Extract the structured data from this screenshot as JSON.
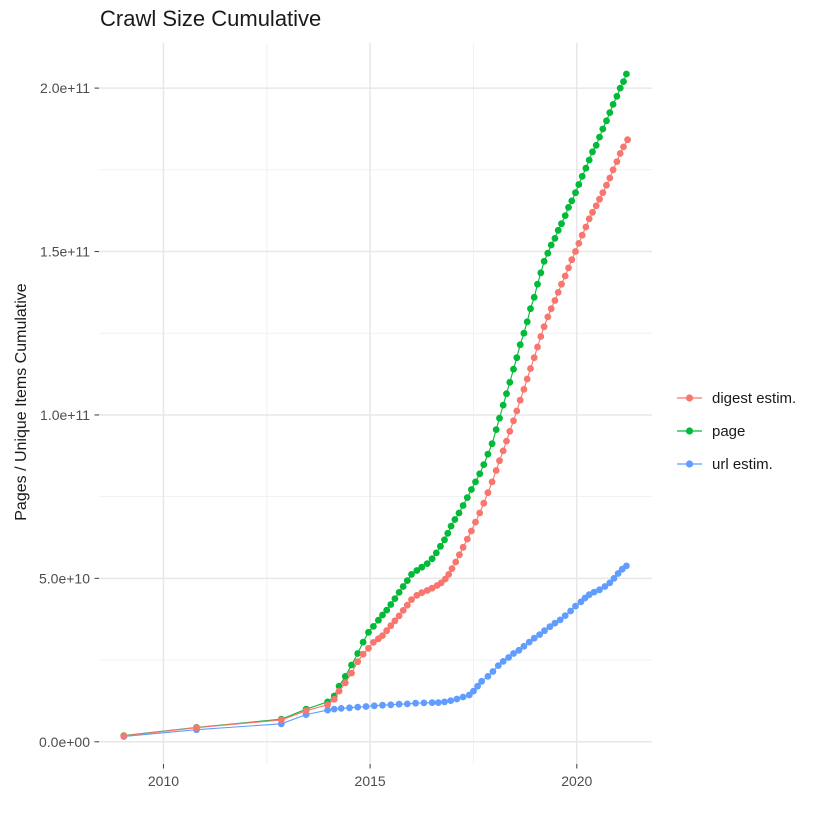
{
  "chart_data": {
    "type": "scatter",
    "title": "Crawl Size Cumulative",
    "xlabel": "",
    "ylabel": "Pages / Unique Items Cumulative",
    "unit": "values in billions of pages / unique items (1e9)",
    "grid": "major+minor, light gray on white",
    "legend_position": "right, vertically centered",
    "xlim": [
      2008.44,
      2021.82
    ],
    "ylim_billions": [
      -6.8,
      213.8
    ],
    "x_ticks": [
      {
        "value": 2010,
        "label": "2010"
      },
      {
        "value": 2015,
        "label": "2015"
      },
      {
        "value": 2020,
        "label": "2020"
      }
    ],
    "x_minor_ticks": [
      2012.5,
      2017.5
    ],
    "y_ticks": [
      {
        "value": 0,
        "label": "0.0e+00"
      },
      {
        "value": 50,
        "label": "5.0e+10"
      },
      {
        "value": 100,
        "label": "1.0e+11"
      },
      {
        "value": 150,
        "label": "1.5e+11"
      },
      {
        "value": 200,
        "label": "2.0e+11"
      }
    ],
    "y_minor_ticks": [
      25,
      75,
      125,
      175
    ],
    "style": {
      "grid_major_color": "#e7e7e7",
      "grid_minor_color": "#f1f1f1",
      "tick_color": "#4d4d4d",
      "tick_label_color": "#4d4d4d",
      "title_color": "#1a1a1a",
      "point_radius": 3.4
    },
    "series": [
      {
        "name": "digest estim.",
        "color": "#F8766D",
        "points": [
          [
            2009.04,
            1.8
          ],
          [
            2010.8,
            4.3
          ],
          [
            2012.85,
            6.7
          ],
          [
            2013.45,
            9.5
          ],
          [
            2013.97,
            11.3
          ],
          [
            2014.13,
            13
          ],
          [
            2014.25,
            15.5
          ],
          [
            2014.4,
            18
          ],
          [
            2014.55,
            21
          ],
          [
            2014.7,
            24.5
          ],
          [
            2014.83,
            26.8
          ],
          [
            2014.96,
            28.6
          ],
          [
            2015.08,
            30.4
          ],
          [
            2015.2,
            31.5
          ],
          [
            2015.3,
            32.5
          ],
          [
            2015.4,
            34
          ],
          [
            2015.5,
            35.5
          ],
          [
            2015.6,
            37
          ],
          [
            2015.7,
            38.5
          ],
          [
            2015.8,
            40.2
          ],
          [
            2015.9,
            41.8
          ],
          [
            2016.0,
            43.5
          ],
          [
            2016.13,
            44.8
          ],
          [
            2016.25,
            45.6
          ],
          [
            2016.38,
            46.3
          ],
          [
            2016.5,
            47
          ],
          [
            2016.62,
            47.8
          ],
          [
            2016.72,
            48.6
          ],
          [
            2016.82,
            49.8
          ],
          [
            2016.9,
            51.2
          ],
          [
            2016.98,
            53
          ],
          [
            2017.07,
            55
          ],
          [
            2017.16,
            57.2
          ],
          [
            2017.25,
            59.5
          ],
          [
            2017.35,
            62
          ],
          [
            2017.45,
            64.5
          ],
          [
            2017.55,
            67.2
          ],
          [
            2017.65,
            70
          ],
          [
            2017.75,
            73
          ],
          [
            2017.85,
            76.2
          ],
          [
            2017.95,
            79.5
          ],
          [
            2018.05,
            83
          ],
          [
            2018.13,
            86
          ],
          [
            2018.22,
            89
          ],
          [
            2018.3,
            92
          ],
          [
            2018.38,
            95
          ],
          [
            2018.47,
            98.2
          ],
          [
            2018.55,
            101.2
          ],
          [
            2018.63,
            104.5
          ],
          [
            2018.72,
            107.8
          ],
          [
            2018.8,
            111
          ],
          [
            2018.88,
            114.2
          ],
          [
            2018.97,
            117.5
          ],
          [
            2019.05,
            120.8
          ],
          [
            2019.13,
            124
          ],
          [
            2019.21,
            127
          ],
          [
            2019.3,
            130
          ],
          [
            2019.38,
            132.5
          ],
          [
            2019.47,
            135
          ],
          [
            2019.55,
            137.5
          ],
          [
            2019.63,
            140
          ],
          [
            2019.72,
            142.5
          ],
          [
            2019.8,
            145
          ],
          [
            2019.88,
            147.5
          ],
          [
            2019.97,
            150
          ],
          [
            2020.05,
            152.5
          ],
          [
            2020.13,
            155
          ],
          [
            2020.22,
            157.5
          ],
          [
            2020.3,
            160
          ],
          [
            2020.38,
            162
          ],
          [
            2020.47,
            164
          ],
          [
            2020.55,
            166
          ],
          [
            2020.63,
            168
          ],
          [
            2020.72,
            170.3
          ],
          [
            2020.8,
            172.5
          ],
          [
            2020.88,
            175
          ],
          [
            2020.97,
            177.5
          ],
          [
            2021.05,
            180
          ],
          [
            2021.13,
            182
          ],
          [
            2021.23,
            184.2
          ]
        ]
      },
      {
        "name": "page",
        "color": "#00BA38",
        "points": [
          [
            2009.04,
            1.9
          ],
          [
            2010.8,
            4.4
          ],
          [
            2012.85,
            6.9
          ],
          [
            2013.45,
            10
          ],
          [
            2013.97,
            12.2
          ],
          [
            2014.13,
            14
          ],
          [
            2014.25,
            17
          ],
          [
            2014.4,
            20
          ],
          [
            2014.55,
            23.5
          ],
          [
            2014.7,
            27
          ],
          [
            2014.83,
            30.5
          ],
          [
            2014.96,
            33.5
          ],
          [
            2015.08,
            35.3
          ],
          [
            2015.2,
            37.2
          ],
          [
            2015.3,
            38.8
          ],
          [
            2015.4,
            40.3
          ],
          [
            2015.5,
            42
          ],
          [
            2015.6,
            43.8
          ],
          [
            2015.7,
            45.7
          ],
          [
            2015.8,
            47.5
          ],
          [
            2015.9,
            49.3
          ],
          [
            2016.0,
            51.2
          ],
          [
            2016.13,
            52.4
          ],
          [
            2016.25,
            53.4
          ],
          [
            2016.38,
            54.5
          ],
          [
            2016.5,
            56
          ],
          [
            2016.6,
            57.8
          ],
          [
            2016.7,
            59.8
          ],
          [
            2016.8,
            61.8
          ],
          [
            2016.88,
            63.8
          ],
          [
            2016.96,
            66
          ],
          [
            2017.05,
            68
          ],
          [
            2017.15,
            70
          ],
          [
            2017.25,
            72.3
          ],
          [
            2017.35,
            74.7
          ],
          [
            2017.45,
            77.2
          ],
          [
            2017.55,
            79.5
          ],
          [
            2017.65,
            82
          ],
          [
            2017.75,
            84.8
          ],
          [
            2017.85,
            88
          ],
          [
            2017.95,
            91.2
          ],
          [
            2018.05,
            95.5
          ],
          [
            2018.13,
            99
          ],
          [
            2018.22,
            103
          ],
          [
            2018.3,
            106.5
          ],
          [
            2018.38,
            110
          ],
          [
            2018.47,
            114
          ],
          [
            2018.55,
            117.5
          ],
          [
            2018.63,
            121.5
          ],
          [
            2018.72,
            125
          ],
          [
            2018.8,
            128.5
          ],
          [
            2018.88,
            132.5
          ],
          [
            2018.97,
            136
          ],
          [
            2019.05,
            140
          ],
          [
            2019.13,
            143.5
          ],
          [
            2019.21,
            147
          ],
          [
            2019.3,
            149.5
          ],
          [
            2019.38,
            152
          ],
          [
            2019.47,
            154
          ],
          [
            2019.55,
            156.5
          ],
          [
            2019.63,
            158.5
          ],
          [
            2019.72,
            161
          ],
          [
            2019.8,
            163.5
          ],
          [
            2019.88,
            165.5
          ],
          [
            2019.97,
            168
          ],
          [
            2020.05,
            170.5
          ],
          [
            2020.13,
            173
          ],
          [
            2020.22,
            175.5
          ],
          [
            2020.3,
            178
          ],
          [
            2020.38,
            180.5
          ],
          [
            2020.47,
            182.5
          ],
          [
            2020.55,
            185
          ],
          [
            2020.63,
            187.5
          ],
          [
            2020.72,
            190
          ],
          [
            2020.8,
            192.5
          ],
          [
            2020.88,
            195
          ],
          [
            2020.97,
            197.5
          ],
          [
            2021.05,
            200
          ],
          [
            2021.13,
            202
          ],
          [
            2021.2,
            204.3
          ]
        ]
      },
      {
        "name": "url estim.",
        "color": "#619CFF",
        "points": [
          [
            2009.04,
            1.6
          ],
          [
            2010.8,
            3.7
          ],
          [
            2012.85,
            5.5
          ],
          [
            2013.45,
            8.3
          ],
          [
            2013.97,
            9.7
          ],
          [
            2014.13,
            10
          ],
          [
            2014.3,
            10.2
          ],
          [
            2014.5,
            10.4
          ],
          [
            2014.7,
            10.6
          ],
          [
            2014.9,
            10.8
          ],
          [
            2015.1,
            11
          ],
          [
            2015.3,
            11.2
          ],
          [
            2015.5,
            11.3
          ],
          [
            2015.7,
            11.5
          ],
          [
            2015.9,
            11.6
          ],
          [
            2016.1,
            11.8
          ],
          [
            2016.3,
            11.9
          ],
          [
            2016.5,
            12
          ],
          [
            2016.65,
            12
          ],
          [
            2016.8,
            12.2
          ],
          [
            2016.95,
            12.6
          ],
          [
            2017.1,
            13.1
          ],
          [
            2017.25,
            13.7
          ],
          [
            2017.4,
            14.3
          ],
          [
            2017.5,
            15.5
          ],
          [
            2017.6,
            17
          ],
          [
            2017.7,
            18.5
          ],
          [
            2017.85,
            20
          ],
          [
            2017.97,
            21.5
          ],
          [
            2018.1,
            23.3
          ],
          [
            2018.22,
            24.6
          ],
          [
            2018.35,
            25.8
          ],
          [
            2018.47,
            27
          ],
          [
            2018.6,
            28
          ],
          [
            2018.72,
            29.2
          ],
          [
            2018.85,
            30.5
          ],
          [
            2018.97,
            31.7
          ],
          [
            2019.1,
            32.8
          ],
          [
            2019.22,
            34
          ],
          [
            2019.35,
            35.2
          ],
          [
            2019.47,
            36.3
          ],
          [
            2019.6,
            37.3
          ],
          [
            2019.72,
            38.6
          ],
          [
            2019.85,
            40
          ],
          [
            2019.97,
            41.5
          ],
          [
            2020.1,
            42.8
          ],
          [
            2020.2,
            44
          ],
          [
            2020.3,
            45
          ],
          [
            2020.42,
            45.8
          ],
          [
            2020.55,
            46.5
          ],
          [
            2020.68,
            47.5
          ],
          [
            2020.8,
            48.6
          ],
          [
            2020.9,
            50
          ],
          [
            2021.0,
            51.5
          ],
          [
            2021.1,
            52.8
          ],
          [
            2021.2,
            53.8
          ]
        ]
      }
    ]
  }
}
